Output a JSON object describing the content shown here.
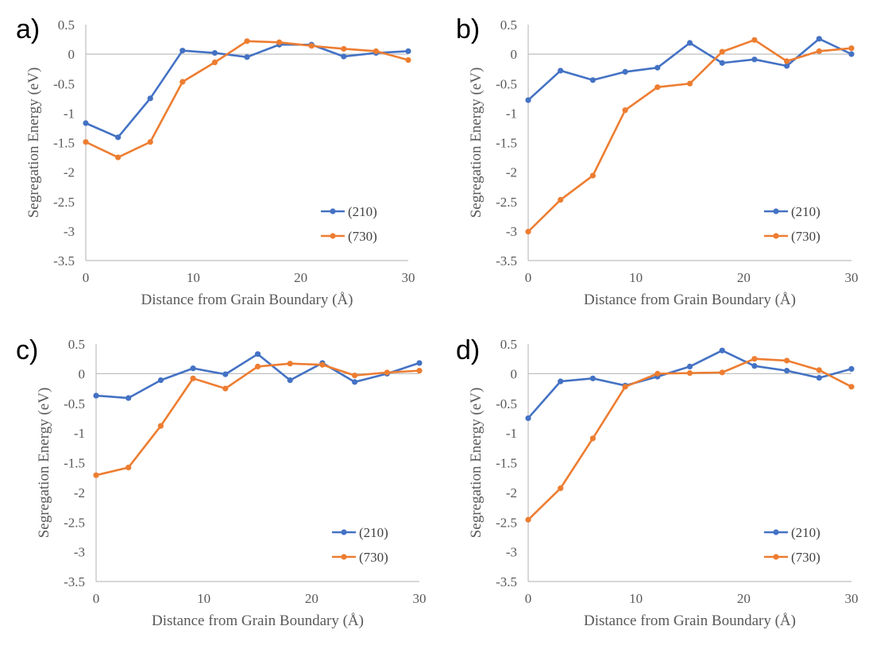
{
  "colors": {
    "series_210": "#4472C4",
    "series_730": "#ED7D31",
    "axis": "#bfbfbf",
    "text": "#595959"
  },
  "chart_data": [
    {
      "type": "line",
      "panel_label": "a)",
      "xlabel": "Distance from Grain Boundary (Å)",
      "ylabel": "Segregation Energy (eV)",
      "xlim": [
        0,
        30
      ],
      "ylim": [
        -3.5,
        0.5
      ],
      "x_ticks": [
        "0",
        "10",
        "20",
        "30"
      ],
      "y_ticks": [
        "0.5",
        "0",
        "-0.5",
        "-1",
        "-1.5",
        "-2",
        "-2.5",
        "-3",
        "-3.5"
      ],
      "legend_position": "bottom-right",
      "x": [
        0,
        3,
        6,
        9,
        12,
        15,
        18,
        21,
        24,
        27,
        30
      ],
      "series": [
        {
          "name": "(210)",
          "values": [
            -1.17,
            -1.41,
            -0.75,
            0.06,
            0.02,
            -0.05,
            0.16,
            0.16,
            -0.04,
            0.02,
            0.05
          ]
        },
        {
          "name": "(730)",
          "values": [
            -1.49,
            -1.75,
            -1.49,
            -0.47,
            -0.14,
            0.22,
            0.2,
            0.14,
            0.09,
            0.05,
            -0.1
          ]
        }
      ]
    },
    {
      "type": "line",
      "panel_label": "b)",
      "xlabel": "Distance from Grain Boundary (Å)",
      "ylabel": "Segregation Energy (eV)",
      "xlim": [
        0,
        30
      ],
      "ylim": [
        -3.5,
        0.5
      ],
      "x_ticks": [
        "0",
        "10",
        "20",
        "30"
      ],
      "y_ticks": [
        "0.5",
        "0",
        "-0.5",
        "-1",
        "-1.5",
        "-2",
        "-2.5",
        "-3",
        "-3.5"
      ],
      "legend_position": "bottom-right",
      "x": [
        0,
        3,
        6,
        9,
        12,
        15,
        18,
        21,
        24,
        27,
        30
      ],
      "series": [
        {
          "name": "(210)",
          "values": [
            -0.78,
            -0.28,
            -0.44,
            -0.3,
            -0.23,
            0.19,
            -0.15,
            -0.09,
            -0.2,
            0.26,
            0.0
          ]
        },
        {
          "name": "(730)",
          "values": [
            -3.01,
            -2.47,
            -2.06,
            -0.95,
            -0.56,
            -0.5,
            0.04,
            0.24,
            -0.12,
            0.05,
            0.1
          ]
        }
      ]
    },
    {
      "type": "line",
      "panel_label": "c)",
      "xlabel": "Distance from Grain Boundary (Å)",
      "ylabel": "Segregation Energy (eV)",
      "xlim": [
        0,
        30
      ],
      "ylim": [
        -3.5,
        0.5
      ],
      "x_ticks": [
        "0",
        "10",
        "20",
        "30"
      ],
      "y_ticks": [
        "0.5",
        "0",
        "-0.5",
        "-1",
        "-1.5",
        "-2",
        "-2.5",
        "-3",
        "-3.5"
      ],
      "legend_position": "bottom-right",
      "x": [
        0,
        3,
        6,
        9,
        12,
        15,
        18,
        21,
        24,
        27,
        30
      ],
      "series": [
        {
          "name": "(210)",
          "values": [
            -0.37,
            -0.41,
            -0.11,
            0.09,
            -0.01,
            0.33,
            -0.11,
            0.18,
            -0.14,
            0.0,
            0.18
          ]
        },
        {
          "name": "(730)",
          "values": [
            -1.71,
            -1.58,
            -0.88,
            -0.08,
            -0.25,
            0.12,
            0.17,
            0.15,
            -0.03,
            0.02,
            0.05
          ]
        }
      ]
    },
    {
      "type": "line",
      "panel_label": "d)",
      "xlabel": "Distance from Grain Boundary (Å)",
      "ylabel": "Segregation Energy (eV)",
      "xlim": [
        0,
        30
      ],
      "ylim": [
        -3.5,
        0.5
      ],
      "x_ticks": [
        "0",
        "10",
        "20",
        "30"
      ],
      "y_ticks": [
        "0.5",
        "0",
        "-0.5",
        "-1",
        "-1.5",
        "-2",
        "-2.5",
        "-3",
        "-3.5"
      ],
      "legend_position": "bottom-right",
      "x": [
        0,
        3,
        6,
        9,
        12,
        15,
        18,
        21,
        24,
        27,
        30
      ],
      "series": [
        {
          "name": "(210)",
          "values": [
            -0.75,
            -0.13,
            -0.08,
            -0.2,
            -0.05,
            0.12,
            0.39,
            0.13,
            0.05,
            -0.07,
            0.08
          ]
        },
        {
          "name": "(730)",
          "values": [
            -2.46,
            -1.93,
            -1.09,
            -0.22,
            0.0,
            0.01,
            0.02,
            0.25,
            0.22,
            0.06,
            -0.22
          ]
        }
      ]
    }
  ]
}
